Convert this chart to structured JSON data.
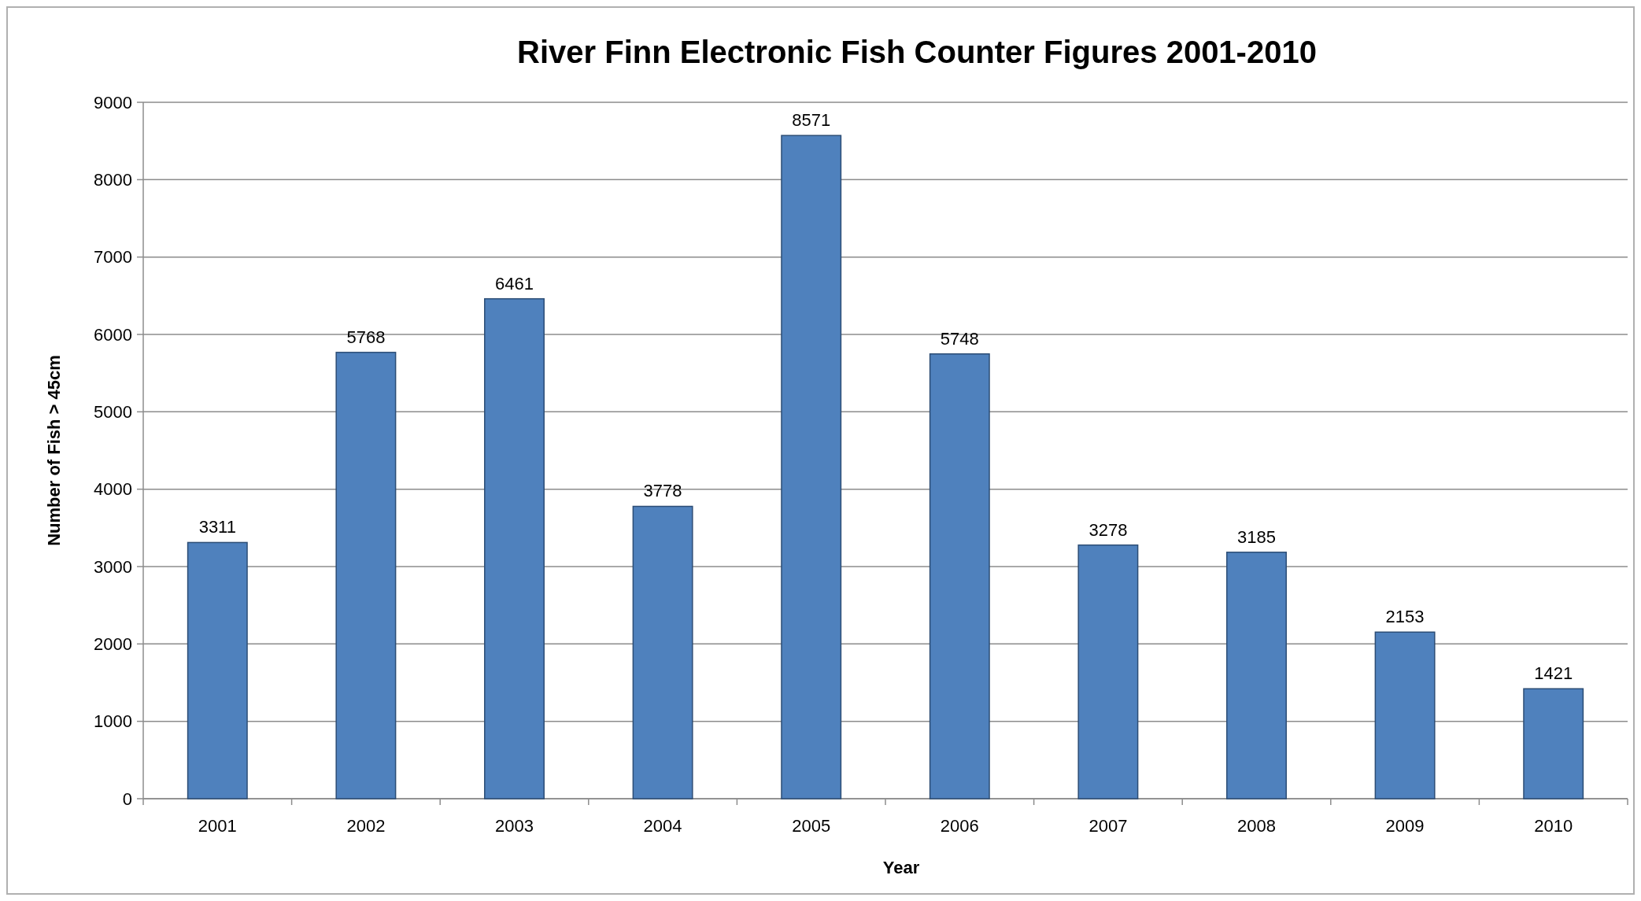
{
  "chart_data": {
    "type": "bar",
    "title": "River Finn Electronic Fish Counter Figures 2001-2010",
    "xlabel": "Year",
    "ylabel": "Number of Fish > 45cm",
    "categories": [
      "2001",
      "2002",
      "2003",
      "2004",
      "2005",
      "2006",
      "2007",
      "2008",
      "2009",
      "2010"
    ],
    "values": [
      3311,
      5768,
      6461,
      3778,
      8571,
      5748,
      3278,
      3185,
      2153,
      1421
    ],
    "color": "#4f81bd",
    "ylim": [
      0,
      9000
    ],
    "yticks": [
      0,
      1000,
      2000,
      3000,
      4000,
      5000,
      6000,
      7000,
      8000,
      9000
    ],
    "grid": "y",
    "data_labels": true
  }
}
